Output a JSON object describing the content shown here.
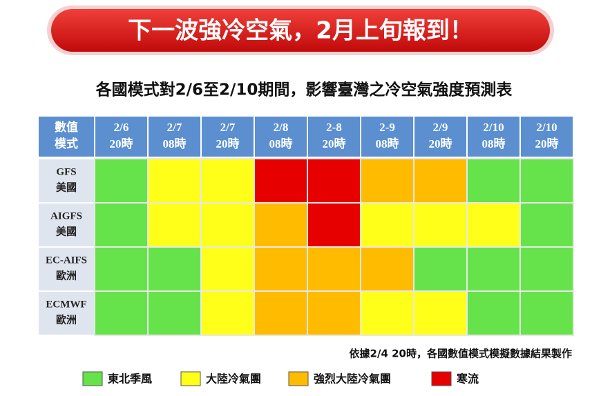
{
  "banner": {
    "title": "下一波強冷空氣，2月上旬報到！"
  },
  "subtitle": "各國模式對2/6至2/10期間，影響臺灣之冷空氣強度預測表",
  "table": {
    "corner": [
      "數值",
      "模式"
    ],
    "columns": [
      {
        "date": "2/6",
        "time": "20時"
      },
      {
        "date": "2/7",
        "time": "08時"
      },
      {
        "date": "2/7",
        "time": "20時"
      },
      {
        "date": "2/8",
        "time": "08時"
      },
      {
        "date": "2-8",
        "time": "20時"
      },
      {
        "date": "2-9",
        "time": "08時"
      },
      {
        "date": "2/9",
        "time": "20時"
      },
      {
        "date": "2/10",
        "time": "08時"
      },
      {
        "date": "2/10",
        "time": "20時"
      }
    ],
    "rows": [
      {
        "model": "GFS",
        "region": "美國",
        "levels": [
          0,
          1,
          1,
          3,
          3,
          2,
          2,
          0,
          0
        ]
      },
      {
        "model": "AIGFS",
        "region": "美國",
        "levels": [
          0,
          1,
          1,
          2,
          3,
          1,
          1,
          1,
          0
        ]
      },
      {
        "model": "EC-AIFS",
        "region": "歐洲",
        "levels": [
          0,
          0,
          1,
          2,
          2,
          2,
          0,
          0,
          0
        ]
      },
      {
        "model": "ECMWF",
        "region": "歐洲",
        "levels": [
          0,
          0,
          1,
          2,
          2,
          1,
          1,
          0,
          0
        ]
      }
    ]
  },
  "note": "依據2/4 20時，各國數值模式模擬數據結果製作",
  "legend": [
    {
      "label": "東北季風",
      "color": "#66e34a"
    },
    {
      "label": "大陸冷氣團",
      "color": "#ffff1a"
    },
    {
      "label": "強烈大陸冷氣團",
      "color": "#ffbb00"
    },
    {
      "label": "寒流",
      "color": "#e60000"
    }
  ]
}
